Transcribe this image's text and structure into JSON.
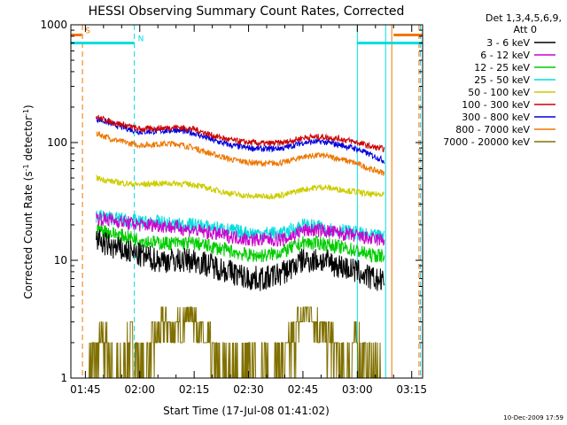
{
  "chart_data": {
    "type": "line",
    "title": "HESSI Observing Summary Count Rates, Corrected",
    "xlabel": "Start Time (17-Jul-08 01:41:02)",
    "ylabel": "Corrected Count Rate (s",
    "ylabel_sup1": "-1",
    "ylabel_mid": " detector",
    "ylabel_sup2": "-1",
    "ylabel_end": ")",
    "y_scale": "log",
    "ylim": [
      1,
      1000
    ],
    "xlim_minutes": [
      101,
      198
    ],
    "x_ticks": [
      {
        "minutes": 105,
        "label": "01:45"
      },
      {
        "minutes": 120,
        "label": "02:00"
      },
      {
        "minutes": 135,
        "label": "02:15"
      },
      {
        "minutes": 150,
        "label": "02:30"
      },
      {
        "minutes": 165,
        "label": "02:45"
      },
      {
        "minutes": 180,
        "label": "03:00"
      },
      {
        "minutes": 195,
        "label": "03:15"
      }
    ],
    "y_ticks": [
      {
        "value": 1,
        "label": "1"
      },
      {
        "value": 10,
        "label": "10"
      },
      {
        "value": 100,
        "label": "100"
      },
      {
        "value": 1000,
        "label": "1000"
      }
    ],
    "legend_title_1": "Det 1,3,4,5,6,9,",
    "legend_title_2": "Att 0",
    "legend_position": "top-right, outside plot",
    "footer_date": "10-Dec-2009 17:59",
    "grid": false,
    "series": [
      {
        "name": "3 - 6 keV",
        "color": "#000000",
        "x": [
          108,
          112,
          116,
          120,
          125,
          130,
          135,
          140,
          145,
          150,
          155,
          160,
          165,
          170,
          175,
          180,
          184,
          187.5
        ],
        "y": [
          15,
          13,
          12,
          11,
          10,
          10,
          10,
          9,
          8,
          7,
          7,
          8,
          10,
          10,
          9,
          8,
          7,
          6.5
        ]
      },
      {
        "name": "6 - 12 keV",
        "color": "#cc00cc",
        "x": [
          108,
          112,
          116,
          120,
          125,
          130,
          135,
          140,
          145,
          150,
          155,
          160,
          165,
          170,
          175,
          180,
          184,
          187.5
        ],
        "y": [
          23,
          22,
          21,
          20,
          20,
          19,
          18,
          17,
          16,
          15,
          15,
          15,
          18,
          18,
          17,
          16,
          15,
          15
        ]
      },
      {
        "name": "12 - 25 keV",
        "color": "#00cc00",
        "x": [
          108,
          112,
          116,
          120,
          125,
          130,
          135,
          140,
          145,
          150,
          155,
          160,
          165,
          170,
          175,
          180,
          184,
          187.5
        ],
        "y": [
          19,
          17,
          16,
          15,
          14,
          14,
          14,
          13,
          12,
          11,
          11,
          12,
          14,
          14,
          13,
          12,
          11,
          11
        ]
      },
      {
        "name": "25 - 50 keV",
        "color": "#00dddd",
        "x": [
          108,
          112,
          116,
          120,
          125,
          130,
          135,
          140,
          145,
          150,
          155,
          160,
          165,
          170,
          175,
          180,
          184,
          187.5
        ],
        "y": [
          24,
          23,
          22,
          21,
          21,
          20,
          20,
          19,
          18,
          17,
          17,
          17,
          20,
          19,
          18,
          17,
          16,
          16
        ]
      },
      {
        "name": "50 - 100 keV",
        "color": "#cccc00",
        "x": [
          108,
          112,
          116,
          120,
          125,
          130,
          135,
          140,
          145,
          150,
          155,
          160,
          165,
          170,
          175,
          180,
          184,
          187.5
        ],
        "y": [
          50,
          47,
          45,
          44,
          45,
          45,
          44,
          40,
          37,
          35,
          35,
          36,
          40,
          42,
          40,
          38,
          36,
          37
        ]
      },
      {
        "name": "100 - 300 keV",
        "color": "#cc0000",
        "x": [
          108,
          112,
          116,
          120,
          125,
          130,
          135,
          140,
          145,
          150,
          155,
          160,
          165,
          170,
          175,
          180,
          184,
          187.5
        ],
        "y": [
          165,
          150,
          140,
          130,
          132,
          135,
          130,
          115,
          105,
          100,
          98,
          100,
          110,
          112,
          108,
          100,
          92,
          88
        ]
      },
      {
        "name": "300 - 800 keV",
        "color": "#0000dd",
        "x": [
          108,
          112,
          116,
          120,
          125,
          130,
          135,
          140,
          145,
          150,
          155,
          160,
          165,
          170,
          175,
          180,
          184,
          187.5
        ],
        "y": [
          160,
          145,
          133,
          123,
          125,
          128,
          120,
          105,
          95,
          90,
          88,
          90,
          100,
          102,
          96,
          88,
          78,
          70
        ]
      },
      {
        "name": "800 - 7000 keV",
        "color": "#ee7700",
        "x": [
          108,
          112,
          116,
          120,
          125,
          130,
          135,
          140,
          145,
          150,
          155,
          160,
          165,
          170,
          175,
          180,
          184,
          187.5
        ],
        "y": [
          120,
          108,
          100,
          95,
          97,
          98,
          90,
          80,
          72,
          68,
          66,
          68,
          76,
          78,
          73,
          66,
          59,
          55
        ]
      },
      {
        "name": "7000 - 20000 keV",
        "color": "#807000",
        "x": [
          106,
          110,
          115,
          118,
          121,
          124,
          127,
          130,
          134,
          138,
          142,
          146,
          150,
          155,
          160,
          164,
          167,
          170,
          173,
          176,
          180,
          184,
          186.5
        ],
        "y": [
          1,
          2,
          1,
          2,
          1,
          2,
          3,
          2.5,
          4,
          2,
          1,
          1,
          1,
          1,
          1.5,
          3,
          4,
          2.5,
          2,
          1,
          2,
          1,
          1
        ]
      }
    ],
    "flag_bars": [
      {
        "label": "S",
        "color": "#ee7700",
        "x_start": 101,
        "x_end": 104,
        "y": 820,
        "line_x": 104.2
      },
      {
        "label": "",
        "color": "#ee7700",
        "x_start": 190,
        "x_end": 198,
        "y": 820,
        "line_x": 189.5
      },
      {
        "label": "N",
        "color": "#00dddd",
        "x_start": 101,
        "x_end": 118.5,
        "y": 700,
        "line_x": 118.5
      },
      {
        "label": "",
        "color": "#00dddd",
        "x_start": 180,
        "x_end": 198,
        "y": 700,
        "line_x": 180
      }
    ],
    "vlines": [
      {
        "x": 104.2,
        "color": "#ee7700",
        "dash": true
      },
      {
        "x": 118.5,
        "color": "#00dddd",
        "dash": true
      },
      {
        "x": 180,
        "color": "#00dddd",
        "dash": false
      },
      {
        "x": 187.8,
        "color": "#00dddd",
        "dash": false
      },
      {
        "x": 189.5,
        "color": "#ee7700",
        "dash": false
      },
      {
        "x": 197,
        "color": "#ee7700",
        "dash": true
      },
      {
        "x": 197.4,
        "color": "#00dddd",
        "dash": true
      }
    ]
  }
}
